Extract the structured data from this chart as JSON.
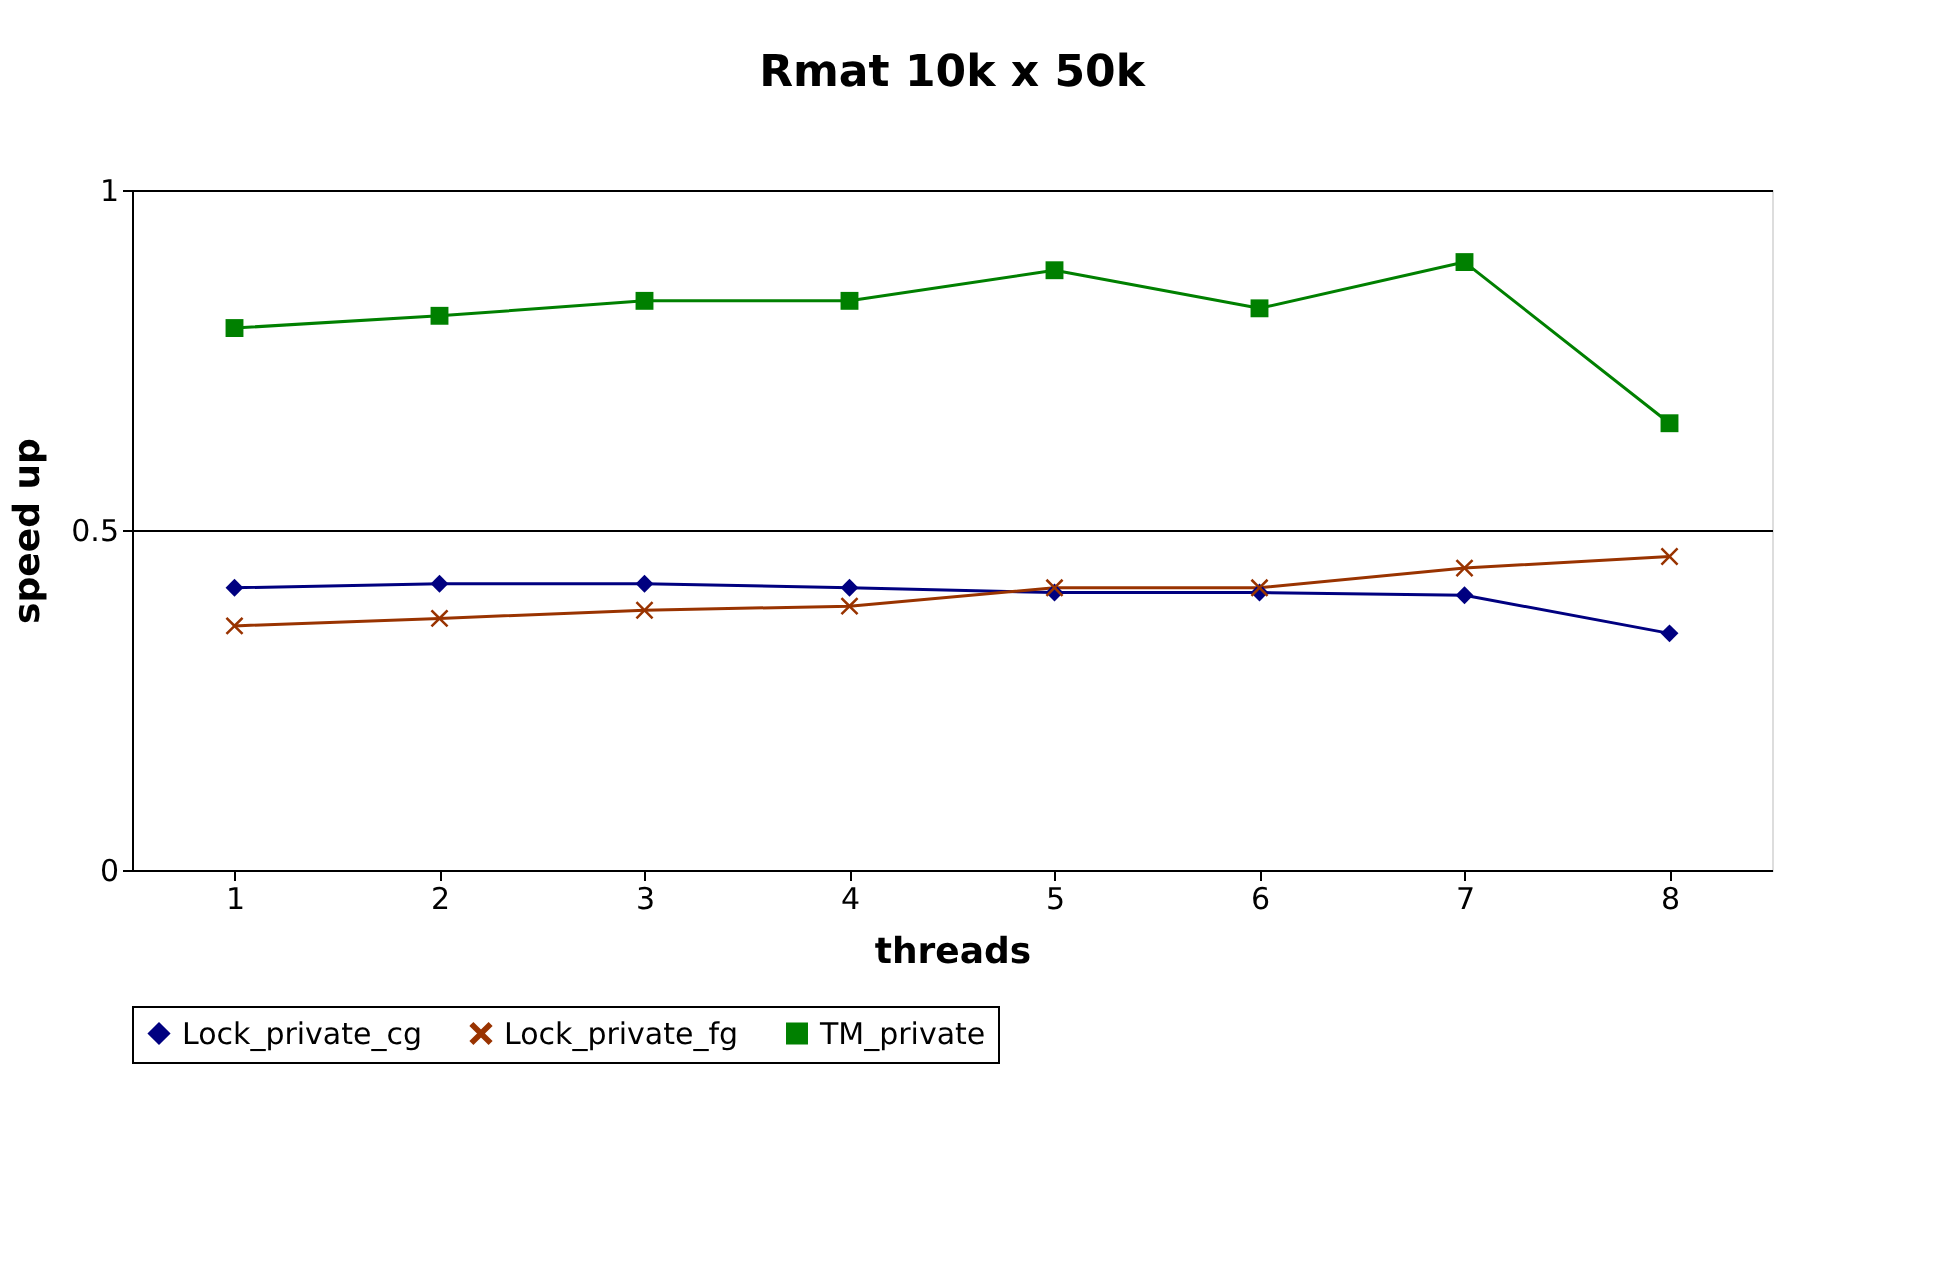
{
  "chart_data": {
    "type": "line",
    "title": "Rmat 10k x 50k",
    "xlabel": "threads",
    "ylabel": "speed up",
    "categories": [
      "1",
      "2",
      "3",
      "4",
      "5",
      "6",
      "7",
      "8"
    ],
    "series": [
      {
        "name": "Lock_private_cg",
        "color": "#000080",
        "marker": "diamond",
        "values": [
          0.415,
          0.421,
          0.421,
          0.415,
          0.408,
          0.408,
          0.404,
          0.348
        ]
      },
      {
        "name": "Lock_private_fg",
        "color": "#993300",
        "marker": "cross",
        "values": [
          0.359,
          0.37,
          0.382,
          0.388,
          0.415,
          0.415,
          0.444,
          0.461
        ]
      },
      {
        "name": "TM_private",
        "color": "#008000",
        "marker": "square",
        "values": [
          0.797,
          0.815,
          0.837,
          0.837,
          0.882,
          0.826,
          0.894,
          0.657
        ]
      }
    ],
    "ylim": [
      0,
      1
    ],
    "yticks": [
      0,
      0.5,
      1
    ],
    "grid": "y",
    "legend": "bottom",
    "line_style": "solid"
  }
}
